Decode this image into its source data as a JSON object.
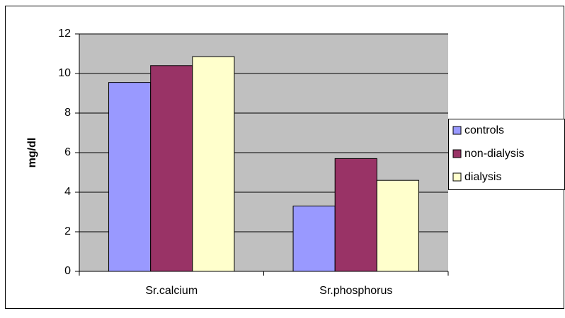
{
  "chart_data": {
    "type": "bar",
    "y_label": "mg/dl",
    "categories": [
      "Sr.calcium",
      "Sr.phosphorus"
    ],
    "series": [
      {
        "name": "controls",
        "color": "#9999ff",
        "values": [
          9.55,
          3.3
        ]
      },
      {
        "name": "non-dialysis",
        "color": "#993366",
        "values": [
          10.4,
          5.7
        ]
      },
      {
        "name": "dialysis",
        "color": "#ffffcc",
        "values": [
          10.85,
          4.6
        ]
      }
    ],
    "ylim": [
      0,
      12
    ],
    "yticks": [
      0,
      2,
      4,
      6,
      8,
      10,
      12
    ],
    "grid": true,
    "legend": "right"
  }
}
